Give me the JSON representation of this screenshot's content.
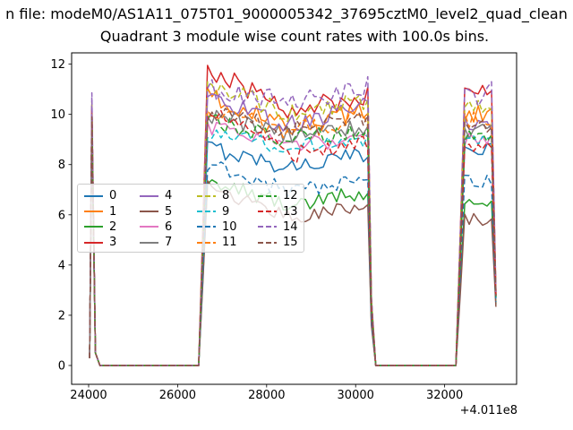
{
  "suptitle": "n file: modeM0/AS1A11_075T01_9000005342_37695cztM0_level2_quad_clean",
  "title": "Quadrant 3 module wise count rates with 100.0s bins.",
  "chart_data": {
    "type": "line",
    "title": "Quadrant 3 module wise count rates with 100.0s bins.",
    "xlabel": "",
    "ylabel": "",
    "grid": false,
    "legend_position": "center-left",
    "legend_columns": 4,
    "bin_seconds": 100,
    "x_axis": {
      "ticks": [
        24000,
        26000,
        28000,
        30000,
        32000
      ],
      "offset_text": "+4.011e8",
      "lim": [
        23618,
        33617
      ]
    },
    "y_axis": {
      "ticks": [
        0,
        2,
        4,
        6,
        8,
        10,
        12
      ],
      "lim": [
        -0.75,
        12.45
      ]
    },
    "time_structure": {
      "spike": {
        "t_rise": 24023,
        "t_peak": 24073,
        "t_fall": 24153,
        "t_zero": 24253
      },
      "zero1_end": 26473,
      "burst1": {
        "t_pre": 26573,
        "t_start": 26673,
        "bins": 37
      },
      "zero2": [
        30453,
        32253
      ],
      "burst1_fall": [
        30353,
        30453
      ],
      "burst2": {
        "t_pre": 32353,
        "t_start": 32453,
        "bins": 7
      },
      "t_end": 33153
    },
    "series": [
      {
        "label": "0",
        "color": "#1f77b4",
        "dashed": false,
        "spike": 9.8,
        "b1_start": 8.7,
        "b1_mid": 7.9,
        "b1_end": 8.4,
        "b2": 8.7,
        "amp": 0.35,
        "ov1": {},
        "ov2": {}
      },
      {
        "label": "1",
        "color": "#ff7f0e",
        "dashed": false,
        "spike": 10.2,
        "b1_start": 10.7,
        "b1_mid": 9.5,
        "b1_end": 10.1,
        "b2": 10.0,
        "amp": 0.4,
        "ov1": {},
        "ov2": {}
      },
      {
        "label": "2",
        "color": "#2ca02c",
        "dashed": false,
        "spike": 9.5,
        "b1_start": 7.4,
        "b1_mid": 6.4,
        "b1_end": 6.9,
        "b2": 6.6,
        "amp": 0.3,
        "ov1": {},
        "ov2": {}
      },
      {
        "label": "3",
        "color": "#d62728",
        "dashed": false,
        "spike": 10.3,
        "b1_start": 11.9,
        "b1_mid": 10.2,
        "b1_end": 10.7,
        "b2": 10.8,
        "amp": 0.45,
        "ov1": {
          "0": 11.95,
          "1": 11.55
        },
        "ov2": {
          "1": 11.0
        }
      },
      {
        "label": "4",
        "color": "#9467bd",
        "dashed": false,
        "spike": 10.4,
        "b1_start": 10.8,
        "b1_mid": 9.6,
        "b1_end": 10.3,
        "b2": 9.7,
        "amp": 0.4,
        "ov1": {},
        "ov2": {}
      },
      {
        "label": "5",
        "color": "#8c564b",
        "dashed": false,
        "spike": 9.6,
        "b1_start": 7.1,
        "b1_mid": 5.9,
        "b1_end": 6.4,
        "b2": 5.8,
        "amp": 0.28,
        "ov1": {},
        "ov2": {}
      },
      {
        "label": "6",
        "color": "#e377c2",
        "dashed": false,
        "spike": 9.7,
        "b1_start": 9.5,
        "b1_mid": 8.8,
        "b1_end": 9.0,
        "b2": 9.0,
        "amp": 0.3,
        "ov1": {},
        "ov2": {}
      },
      {
        "label": "7",
        "color": "#7f7f7f",
        "dashed": false,
        "spike": 9.9,
        "b1_start": 10.0,
        "b1_mid": 9.2,
        "b1_end": 9.5,
        "b2": 9.3,
        "amp": 0.35,
        "ov1": {},
        "ov2": {}
      },
      {
        "label": "8",
        "color": "#bcbd22",
        "dashed": true,
        "spike": 10.5,
        "b1_start": 11.3,
        "b1_mid": 10.0,
        "b1_end": 10.5,
        "b2": 10.3,
        "amp": 0.4,
        "ov1": {
          "0": 11.3
        },
        "ov2": {}
      },
      {
        "label": "9",
        "color": "#17becf",
        "dashed": true,
        "spike": 9.8,
        "b1_start": 9.3,
        "b1_mid": 8.7,
        "b1_end": 9.0,
        "b2": 8.9,
        "amp": 0.3,
        "ov1": {},
        "ov2": {}
      },
      {
        "label": "10",
        "color": "#1f77b4",
        "dashed": true,
        "spike": 9.9,
        "b1_start": 8.0,
        "b1_mid": 7.0,
        "b1_end": 7.3,
        "b2": 7.4,
        "amp": 0.33,
        "ov1": {},
        "ov2": {}
      },
      {
        "label": "11",
        "color": "#ff7f0e",
        "dashed": true,
        "spike": 10.1,
        "b1_start": 10.3,
        "b1_mid": 9.3,
        "b1_end": 9.9,
        "b2": 9.8,
        "amp": 0.38,
        "ov1": {},
        "ov2": {}
      },
      {
        "label": "12",
        "color": "#2ca02c",
        "dashed": true,
        "spike": 10.0,
        "b1_start": 9.8,
        "b1_mid": 9.0,
        "b1_end": 9.4,
        "b2": 9.1,
        "amp": 0.35,
        "ov1": {},
        "ov2": {}
      },
      {
        "label": "13",
        "color": "#d62728",
        "dashed": true,
        "spike": 10.2,
        "b1_start": 10.4,
        "b1_mid": 8.4,
        "b1_end": 8.9,
        "b2": 8.7,
        "amp": 0.42,
        "ov1": {},
        "ov2": {}
      },
      {
        "label": "14",
        "color": "#9467bd",
        "dashed": true,
        "spike": 10.86,
        "b1_start": 11.0,
        "b1_mid": 10.5,
        "b1_end": 11.0,
        "b2": 10.7,
        "amp": 0.42,
        "ov1": {
          "36": 11.5
        },
        "ov2": {
          "6": 11.3
        }
      },
      {
        "label": "15",
        "color": "#8c564b",
        "dashed": true,
        "spike": 9.9,
        "b1_start": 10.1,
        "b1_mid": 9.4,
        "b1_end": 9.8,
        "b2": 9.5,
        "amp": 0.35,
        "ov1": {},
        "ov2": {}
      }
    ]
  }
}
